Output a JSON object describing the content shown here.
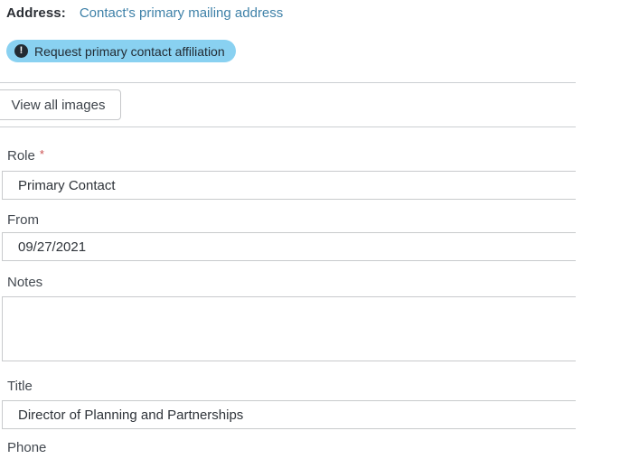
{
  "header": {
    "address_label": "Address:",
    "address_link": "Contact's primary mailing address",
    "badge": {
      "icon": "alert-circle-icon",
      "icon_glyph": "!",
      "label": "Request primary contact affiliation",
      "bg_color": "#89d1f1",
      "text_color": "#222b33"
    }
  },
  "toolbar": {
    "view_all_images_label": "View all images"
  },
  "form": {
    "required_marker": "*",
    "fields": [
      {
        "label": "Role",
        "required": true,
        "control": "input",
        "value": "Primary Contact"
      },
      {
        "label": "From",
        "required": false,
        "control": "input",
        "value": "09/27/2021"
      },
      {
        "label": "Notes",
        "required": false,
        "control": "textarea",
        "value": ""
      },
      {
        "label": "Title",
        "required": false,
        "control": "input",
        "value": "Director of Planning and Partnerships"
      },
      {
        "label": "Phone",
        "required": false,
        "control": "input",
        "value": ""
      }
    ]
  },
  "colors": {
    "link": "#3e81a8",
    "badge_bg": "#89d1f1",
    "required_asterisk": "#cb5050",
    "divider": "#cbcfd2",
    "input_border": "#c8cacc"
  }
}
